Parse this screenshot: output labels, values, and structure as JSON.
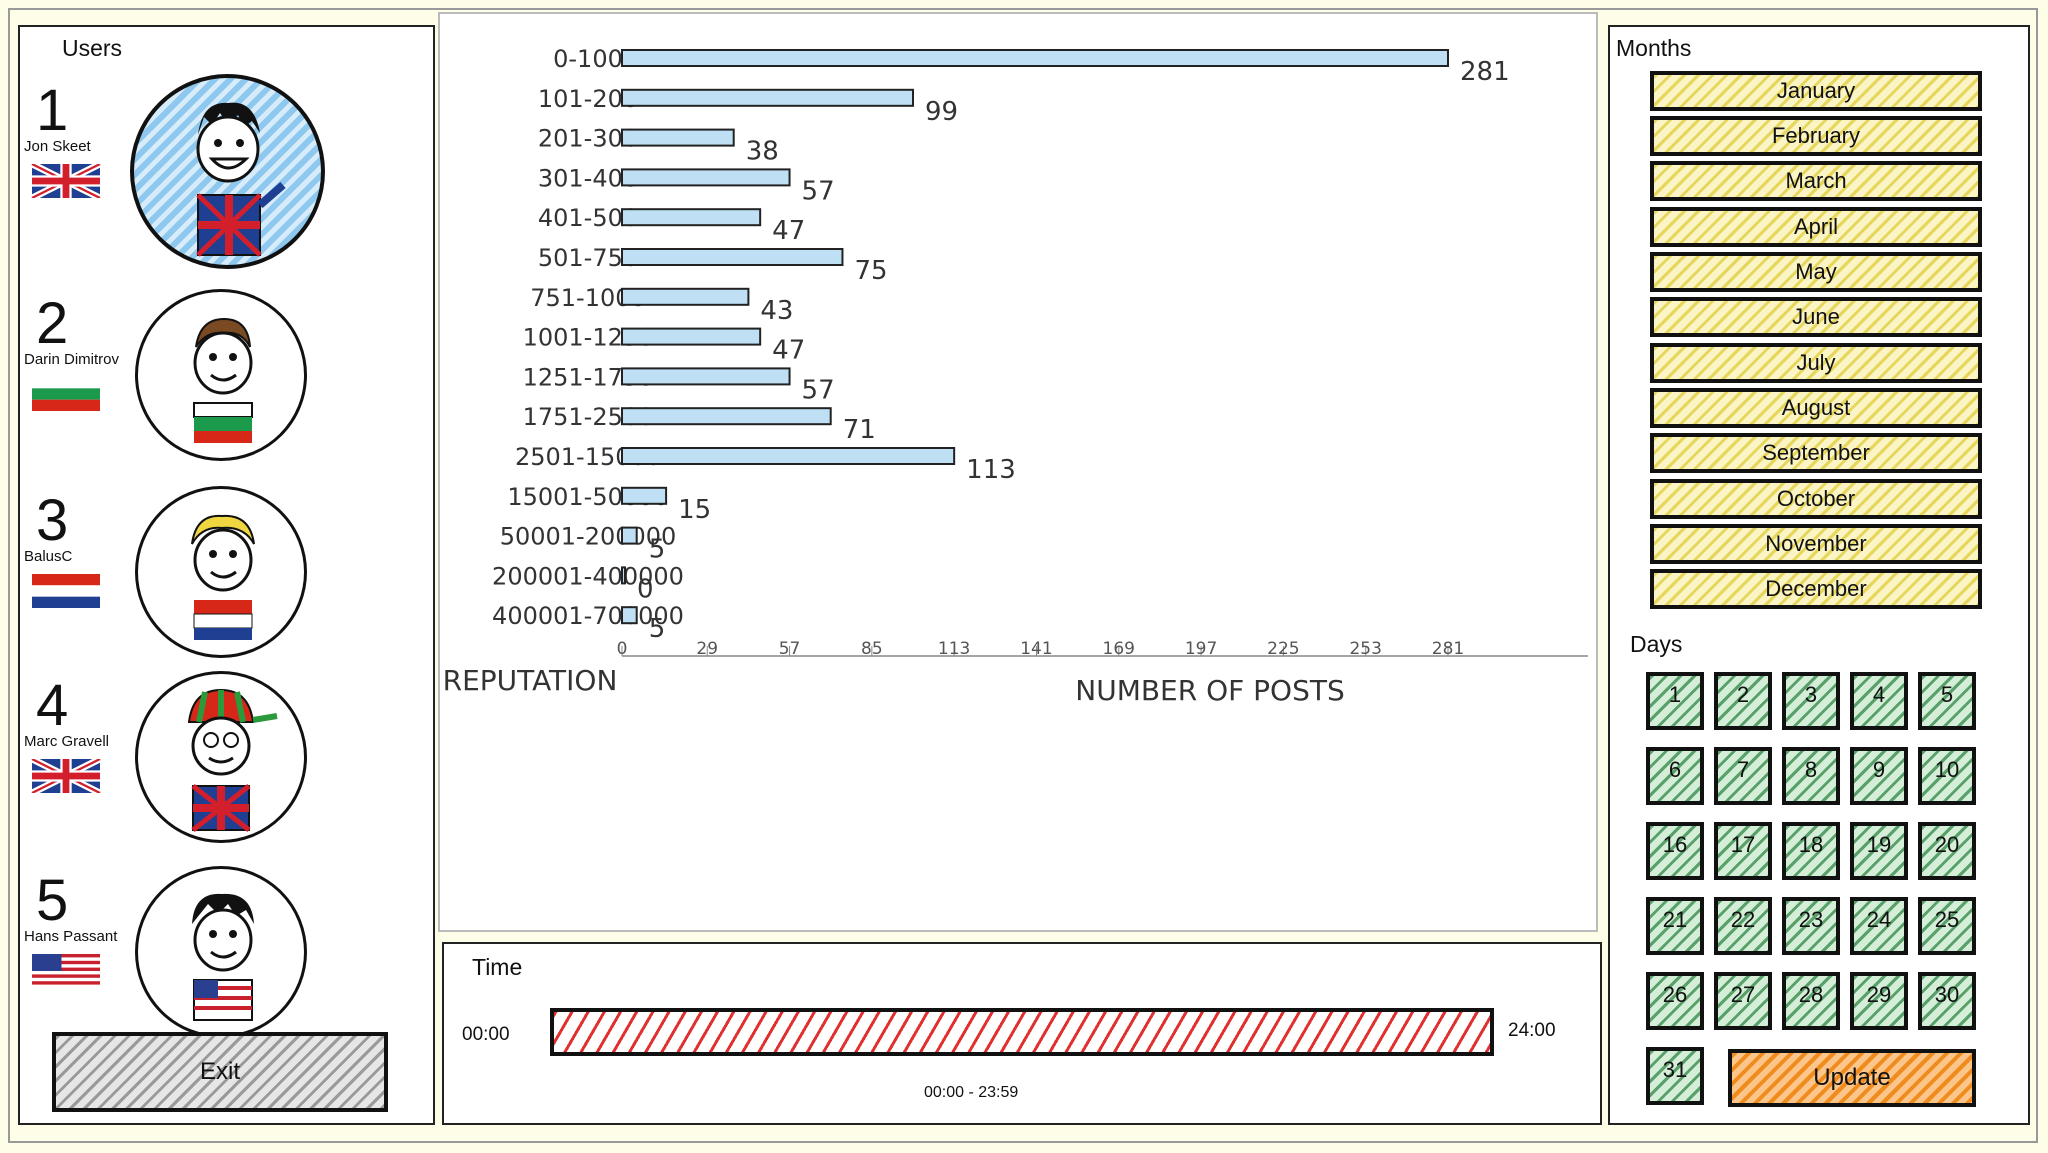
{
  "users_panel": {
    "title": "Users",
    "users": [
      {
        "rank": "1",
        "name": "Jon Skeet",
        "flag": "uk-flag"
      },
      {
        "rank": "2",
        "name": "Darin Dimitrov",
        "flag": "bulgaria-flag"
      },
      {
        "rank": "3",
        "name": "BalusC",
        "flag": "netherlands-flag"
      },
      {
        "rank": "4",
        "name": "Marc Gravell",
        "flag": "uk-flag"
      },
      {
        "rank": "5",
        "name": "Hans Passant",
        "flag": "usa-flag"
      }
    ],
    "exit_label": "Exit"
  },
  "chart_data": {
    "type": "bar",
    "orientation": "horizontal",
    "categories": [
      "0-100",
      "101-200",
      "201-300",
      "301-400",
      "401-500",
      "501-750",
      "751-1000",
      "1001-1250",
      "1251-1750",
      "1751-2500",
      "2501-15000",
      "15001-50000",
      "50001-200000",
      "200001-400000",
      "400001-700000"
    ],
    "values": [
      281,
      99,
      38,
      57,
      47,
      75,
      43,
      47,
      57,
      71,
      113,
      15,
      5,
      0,
      5
    ],
    "xlabel": "NUMBER OF POSTS",
    "ylabel": "REPUTATION",
    "xticks": [
      "0",
      "29",
      "57",
      "85",
      "113",
      "141",
      "169",
      "197",
      "225",
      "253",
      "281"
    ],
    "xlim": [
      0,
      281
    ],
    "grid": false,
    "bar_color": "#bfe0f4"
  },
  "time_panel": {
    "title": "Time",
    "start": "00:00",
    "end": "24:00",
    "range": "00:00 - 23:59",
    "bar_color": "#e03030"
  },
  "months_panel": {
    "title": "Months",
    "months": [
      "January",
      "February",
      "March",
      "April",
      "May",
      "June",
      "July",
      "August",
      "September",
      "October",
      "November",
      "December"
    ],
    "days_title": "Days",
    "days": [
      "1",
      "2",
      "3",
      "4",
      "5",
      "6",
      "7",
      "8",
      "9",
      "10",
      "16",
      "17",
      "18",
      "19",
      "20",
      "21",
      "22",
      "23",
      "24",
      "25",
      "26",
      "27",
      "28",
      "29",
      "30",
      "31"
    ],
    "update_label": "Update"
  }
}
